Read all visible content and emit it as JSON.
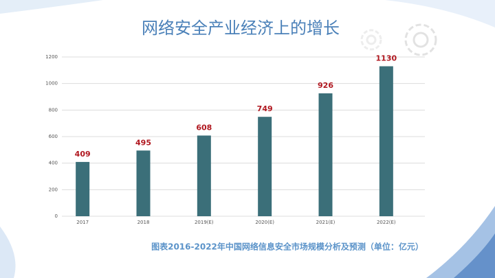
{
  "chart_data": {
    "type": "bar",
    "title": "网络安全产业经济上的增长",
    "caption": "图表2016-2022年中国网络信息安全市场规模分析及预测（单位：亿元）",
    "categories": [
      "2017",
      "2018",
      "2019(E)",
      "2020(E)",
      "2021(E)",
      "2022(E)"
    ],
    "values": [
      409,
      495,
      608,
      749,
      926,
      1130
    ],
    "color": "#3b6f79",
    "label_color": "#b0171f",
    "ylim": [
      0,
      1200
    ],
    "yticks": [
      0,
      200,
      400,
      600,
      800,
      1000,
      1200
    ],
    "grid": true
  }
}
